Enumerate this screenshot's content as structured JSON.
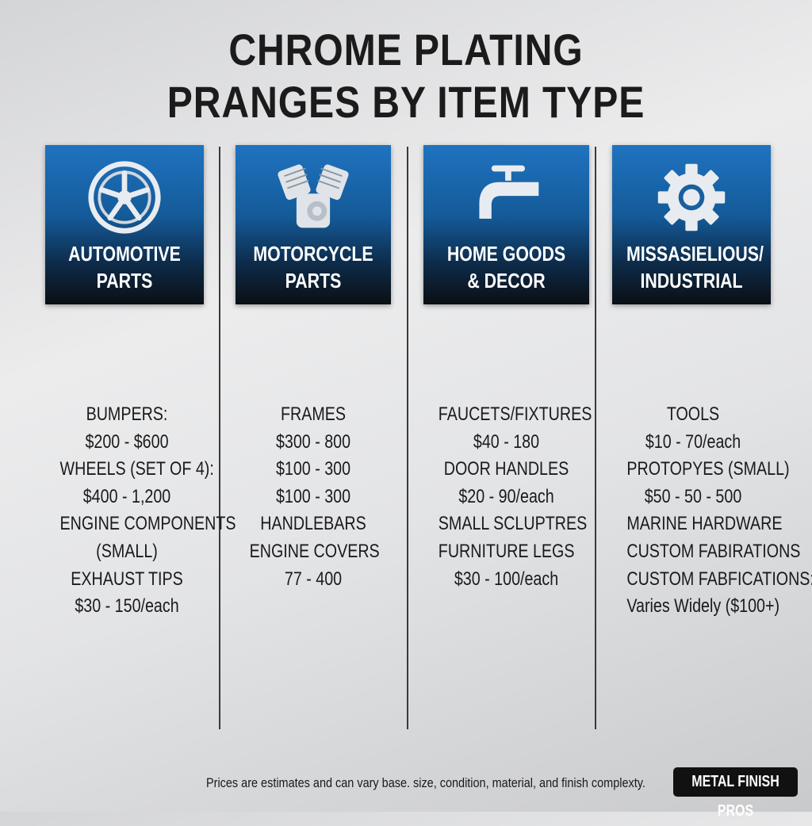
{
  "title": {
    "line1": "CHROME PLATING",
    "line2": "PRANGES BY ITEM TYPE"
  },
  "colors": {
    "card_top": "#1f73c0",
    "card_bottom": "#0b0f14"
  },
  "columns": [
    {
      "icon": "wheel-icon",
      "label_line1": "AUTOMOTIVE",
      "label_line2": "PARTS",
      "items": [
        "BUMPERS:",
        "$200 - $600",
        "WHEELS (SET OF 4):",
        "$400 - 1,200",
        "ENGINE COMPONENTS",
        "(SMALL)",
        "EXHAUST TIPS",
        "$30 - 150/each"
      ]
    },
    {
      "icon": "engine-icon",
      "label_line1": "MOTORCYCLE",
      "label_line2": "PARTS",
      "items": [
        "FRAMES",
        "$300 - 800",
        "$100 - 300",
        "$100 - 300",
        "HANDLEBARS",
        "ENGINE COVERS",
        "77 - 400"
      ]
    },
    {
      "icon": "faucet-icon",
      "label_line1": "HOME GOODS",
      "label_line2": "& DECOR",
      "items": [
        "FAUCETS/FIXTURES",
        "$40 - 180",
        "DOOR HANDLES",
        "$20 - 90/each",
        "SMALL SCLUPTRES",
        "FURNITURE LEGS",
        "$30 - 100/each"
      ]
    },
    {
      "icon": "gear-icon",
      "label_line1": "MISSASIELIOUS/",
      "label_line2": "INDUSTRIAL",
      "items": [
        "TOOLS",
        "$10 - 70/each",
        "PROTOPYES (SMALL)",
        "$50 - 50 - 500",
        "MARINE HARDWARE",
        "CUSTOM FABIRATIONS",
        "CUSTOM FABFICATIONS:",
        "Varies Widely ($100+)"
      ]
    }
  ],
  "footer": {
    "note": "Prices are estimates and can vary base. size, condition, material, and finish complexty.",
    "brand": "METAL FINISH PROS"
  }
}
